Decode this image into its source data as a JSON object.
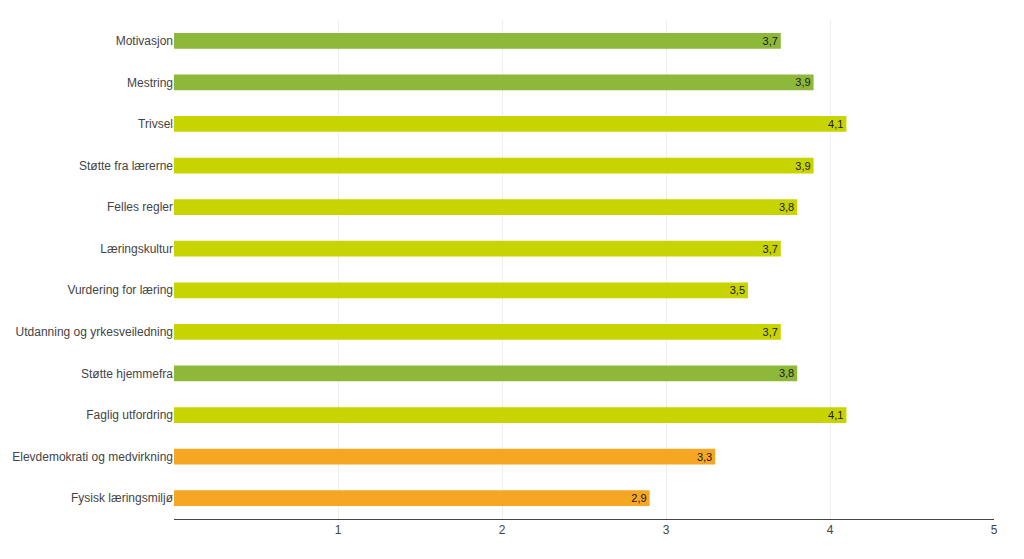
{
  "chart_data": {
    "type": "bar",
    "orientation": "horizontal",
    "categories": [
      "Motivasjon",
      "Mestring",
      "Trivsel",
      "Støtte fra lærerne",
      "Felles regler",
      "Læringskultur",
      "Vurdering for læring",
      "Utdanning og yrkesveiledning",
      "Støtte hjemmefra",
      "Faglig utfordring",
      "Elevdemokrati og medvirkning",
      "Fysisk læringsmiljø"
    ],
    "values": [
      3.7,
      3.9,
      4.1,
      3.9,
      3.8,
      3.7,
      3.5,
      3.7,
      3.8,
      4.1,
      3.3,
      2.9
    ],
    "value_labels": [
      "3,7",
      "3,9",
      "4,1",
      "3,9",
      "3,8",
      "3,7",
      "3,5",
      "3,7",
      "3,8",
      "4,1",
      "3,3",
      "2,9"
    ],
    "colors": [
      "#8db83a",
      "#8db83a",
      "#c8d400",
      "#c8d400",
      "#c8d400",
      "#c8d400",
      "#c8d400",
      "#c8d400",
      "#8db83a",
      "#c8d400",
      "#f5a623",
      "#f5a623"
    ],
    "xlim": [
      0,
      5
    ],
    "xticks": [
      1,
      2,
      3,
      4,
      5
    ],
    "grid": true,
    "data_labels": true
  }
}
